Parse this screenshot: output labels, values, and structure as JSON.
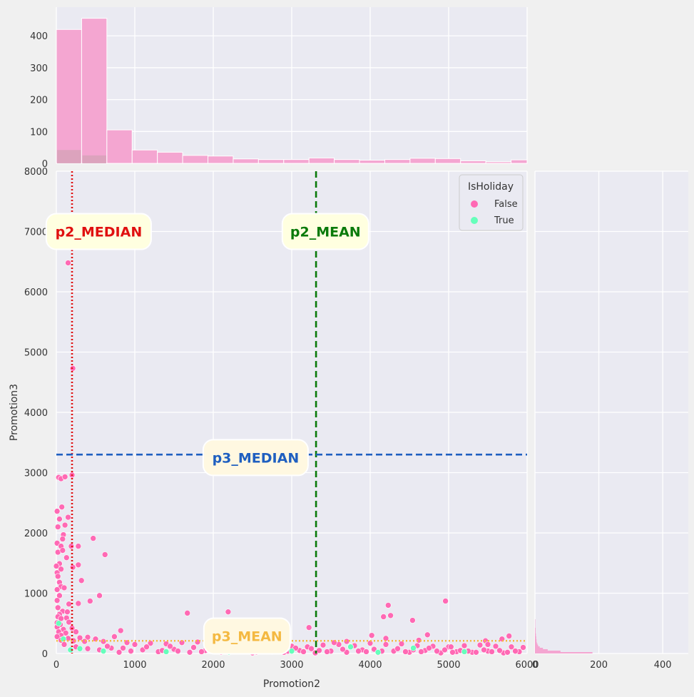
{
  "chart_data": {
    "type": "scatter",
    "title": "",
    "xlabel": "Promotion2",
    "ylabel": "Promotion3",
    "xlim": [
      0,
      6000
    ],
    "ylim": [
      0,
      8000
    ],
    "x_ticks": [
      "0",
      "1000",
      "2000",
      "3000",
      "4000",
      "5000",
      "6000"
    ],
    "y_ticks": [
      "0",
      "1000",
      "2000",
      "3000",
      "4000",
      "5000",
      "6000",
      "7000",
      "8000"
    ],
    "grid": true,
    "legend": {
      "title": "IsHoliday",
      "placement": "top-right",
      "entries": [
        {
          "label": "False",
          "color": "#ff69b4"
        },
        {
          "label": "True",
          "color": "#66ffbb"
        }
      ]
    },
    "reference_lines": [
      {
        "label": "p2_MEDIAN",
        "orientation": "vertical",
        "value": 200,
        "color": "#e01010",
        "style": "dotted"
      },
      {
        "label": "p2_MEAN",
        "orientation": "vertical",
        "value": 3310,
        "color": "#0a7a0a",
        "style": "dashed"
      },
      {
        "label": "p3_MEDIAN",
        "orientation": "horizontal",
        "value": 3300,
        "color": "#1f5fc0",
        "style": "dashed"
      },
      {
        "label": "p3_MEAN",
        "orientation": "horizontal",
        "value": 210,
        "color": "#f4b942",
        "style": "dotted"
      }
    ],
    "annotations": [
      {
        "text": "p2_MEDIAN",
        "x": 540,
        "y": 7000,
        "color": "#e01010",
        "box": "#ffffe0"
      },
      {
        "text": "p2_MEAN",
        "x": 3430,
        "y": 7000,
        "color": "#0a7a0a",
        "box": "#ffffe0"
      },
      {
        "text": "p3_MEDIAN",
        "x": 2540,
        "y": 3250,
        "color": "#1f5fc0",
        "box": "#fff8e1"
      },
      {
        "text": "p3_MEAN",
        "x": 2430,
        "y": 290,
        "color": "#f4b942",
        "box": "#fff8e1"
      }
    ],
    "series": [
      {
        "name": "False",
        "color": "#ff69b4",
        "points": [
          [
            150,
            6480
          ],
          [
            210,
            4730
          ],
          [
            30,
            2920
          ],
          [
            60,
            2900
          ],
          [
            110,
            2930
          ],
          [
            200,
            2960
          ],
          [
            10,
            2360
          ],
          [
            70,
            2430
          ],
          [
            150,
            2260
          ],
          [
            40,
            2230
          ],
          [
            20,
            2100
          ],
          [
            110,
            2130
          ],
          [
            90,
            1970
          ],
          [
            80,
            1900
          ],
          [
            10,
            1830
          ],
          [
            60,
            1780
          ],
          [
            20,
            1680
          ],
          [
            80,
            1710
          ],
          [
            190,
            1780
          ],
          [
            280,
            1780
          ],
          [
            470,
            1910
          ],
          [
            620,
            1640
          ],
          [
            130,
            1590
          ],
          [
            40,
            1490
          ],
          [
            0,
            1450
          ],
          [
            10,
            1340
          ],
          [
            210,
            1430
          ],
          [
            280,
            1470
          ],
          [
            60,
            1400
          ],
          [
            20,
            1280
          ],
          [
            40,
            1180
          ],
          [
            320,
            1210
          ],
          [
            60,
            1110
          ],
          [
            100,
            1090
          ],
          [
            10,
            1060
          ],
          [
            40,
            960
          ],
          [
            550,
            960
          ],
          [
            10,
            880
          ],
          [
            160,
            820
          ],
          [
            280,
            830
          ],
          [
            430,
            870
          ],
          [
            20,
            760
          ],
          [
            80,
            700
          ],
          [
            40,
            650
          ],
          [
            140,
            690
          ],
          [
            20,
            610
          ],
          [
            60,
            580
          ],
          [
            130,
            590
          ],
          [
            10,
            510
          ],
          [
            50,
            480
          ],
          [
            160,
            520
          ],
          [
            10,
            440
          ],
          [
            90,
            400
          ],
          [
            200,
            420
          ],
          [
            30,
            360
          ],
          [
            120,
            340
          ],
          [
            250,
            360
          ],
          [
            820,
            380
          ],
          [
            740,
            280
          ],
          [
            60,
            300
          ],
          [
            10,
            280
          ],
          [
            150,
            250
          ],
          [
            300,
            260
          ],
          [
            400,
            270
          ],
          [
            500,
            240
          ],
          [
            60,
            220
          ],
          [
            220,
            210
          ],
          [
            360,
            200
          ],
          [
            600,
            200
          ],
          [
            900,
            180
          ],
          [
            1000,
            150
          ],
          [
            1200,
            170
          ],
          [
            1400,
            160
          ],
          [
            1600,
            180
          ],
          [
            1800,
            190
          ],
          [
            2000,
            160
          ],
          [
            2200,
            120
          ],
          [
            2400,
            140
          ],
          [
            2600,
            110
          ],
          [
            2800,
            130
          ],
          [
            3000,
            120
          ],
          [
            3200,
            110
          ],
          [
            3400,
            140
          ],
          [
            3600,
            150
          ],
          [
            3800,
            130
          ],
          [
            4000,
            170
          ],
          [
            4200,
            150
          ],
          [
            4400,
            160
          ],
          [
            4600,
            130
          ],
          [
            4800,
            120
          ],
          [
            5000,
            110
          ],
          [
            5200,
            130
          ],
          [
            5400,
            140
          ],
          [
            5600,
            120
          ],
          [
            5800,
            110
          ],
          [
            5950,
            100
          ],
          [
            1670,
            670
          ],
          [
            2190,
            690
          ],
          [
            3220,
            430
          ],
          [
            4020,
            300
          ],
          [
            4170,
            610
          ],
          [
            4230,
            800
          ],
          [
            4260,
            630
          ],
          [
            4540,
            550
          ],
          [
            4960,
            870
          ],
          [
            4730,
            310
          ],
          [
            5770,
            290
          ],
          [
            5470,
            210
          ],
          [
            5680,
            240
          ],
          [
            4200,
            250
          ],
          [
            3700,
            200
          ],
          [
            3540,
            180
          ],
          [
            4620,
            220
          ],
          [
            5030,
            110
          ],
          [
            5500,
            150
          ],
          [
            700,
            90
          ],
          [
            1100,
            60
          ],
          [
            1500,
            70
          ],
          [
            1900,
            50
          ],
          [
            2300,
            40
          ],
          [
            2700,
            60
          ],
          [
            3100,
            50
          ],
          [
            3500,
            40
          ],
          [
            3900,
            60
          ],
          [
            4300,
            40
          ],
          [
            4700,
            50
          ],
          [
            5100,
            30
          ],
          [
            5500,
            40
          ],
          [
            5900,
            30
          ],
          [
            800,
            20
          ],
          [
            1300,
            30
          ],
          [
            1700,
            20
          ],
          [
            2100,
            20
          ],
          [
            2500,
            10
          ],
          [
            2900,
            20
          ],
          [
            3300,
            10
          ],
          [
            3700,
            20
          ],
          [
            4100,
            10
          ],
          [
            4500,
            20
          ],
          [
            4900,
            10
          ],
          [
            5300,
            20
          ],
          [
            5700,
            10
          ],
          [
            100,
            150
          ],
          [
            250,
            110
          ],
          [
            400,
            80
          ],
          [
            550,
            60
          ],
          [
            650,
            120
          ],
          [
            850,
            90
          ],
          [
            950,
            40
          ],
          [
            1150,
            110
          ],
          [
            1350,
            50
          ],
          [
            1450,
            120
          ],
          [
            1550,
            40
          ],
          [
            1750,
            100
          ],
          [
            1850,
            30
          ],
          [
            1950,
            110
          ],
          [
            2050,
            70
          ],
          [
            2150,
            30
          ],
          [
            2350,
            90
          ],
          [
            2450,
            50
          ],
          [
            2550,
            20
          ],
          [
            2650,
            80
          ],
          [
            2750,
            30
          ],
          [
            2850,
            70
          ],
          [
            2950,
            40
          ],
          [
            3050,
            90
          ],
          [
            3150,
            30
          ],
          [
            3250,
            80
          ],
          [
            3350,
            50
          ],
          [
            3450,
            30
          ],
          [
            3650,
            70
          ],
          [
            3750,
            110
          ],
          [
            3850,
            40
          ],
          [
            3950,
            30
          ],
          [
            4050,
            70
          ],
          [
            4150,
            40
          ],
          [
            4350,
            80
          ],
          [
            4450,
            30
          ],
          [
            4550,
            60
          ],
          [
            4650,
            30
          ],
          [
            4750,
            90
          ],
          [
            4850,
            40
          ],
          [
            4950,
            60
          ],
          [
            5050,
            20
          ],
          [
            5150,
            50
          ],
          [
            5250,
            40
          ],
          [
            5350,
            20
          ],
          [
            5450,
            60
          ],
          [
            5550,
            30
          ],
          [
            5650,
            50
          ],
          [
            5750,
            20
          ],
          [
            5850,
            40
          ]
        ]
      },
      {
        "name": "True",
        "color": "#66ffbb",
        "points": [
          [
            30,
            500
          ],
          [
            90,
            240
          ],
          [
            300,
            80
          ],
          [
            600,
            40
          ],
          [
            1400,
            30
          ],
          [
            2200,
            20
          ],
          [
            3000,
            40
          ],
          [
            3750,
            110
          ],
          [
            4100,
            20
          ],
          [
            4550,
            90
          ],
          [
            5200,
            30
          ],
          [
            180,
            60
          ]
        ]
      }
    ],
    "marginal_x_histogram": {
      "type": "bar",
      "bin_width": 322,
      "counts": [
        420,
        455,
        105,
        42,
        35,
        25,
        23,
        14,
        12,
        12,
        17,
        12,
        10,
        12,
        16,
        15,
        8,
        5,
        11,
        8
      ],
      "holiday_counts": [
        42,
        25
      ],
      "ylim": [
        0,
        490
      ],
      "y_ticks": [
        "0",
        "100",
        "200",
        "300",
        "400"
      ]
    },
    "marginal_y_histogram": {
      "type": "bar",
      "xlim": [
        0,
        480
      ],
      "x_ticks": [
        "0",
        "200",
        "400"
      ],
      "counts_by_y_bins": [
        180,
        80,
        40,
        25,
        15,
        10,
        8,
        6,
        5,
        5,
        4,
        4,
        3,
        3,
        2,
        2,
        2,
        2,
        1,
        1,
        1,
        1,
        1,
        1
      ]
    }
  }
}
